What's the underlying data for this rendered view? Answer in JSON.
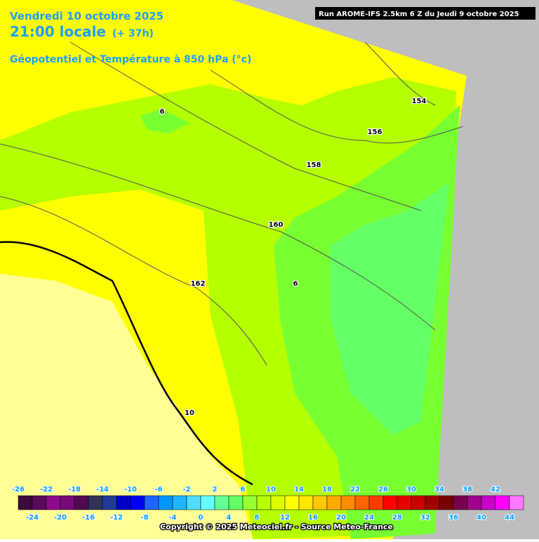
{
  "header": {
    "date": "Vendredi 10 octobre 2025",
    "time": "21:00 locale",
    "lead": "(+ 37h)",
    "field": "Géopotentiel et Température à 850 hPa (°c)",
    "run": "Run AROME-IFS 2.5km 6 Z du Jeudi 9 octobre 2025"
  },
  "contour_labels": [
    "6",
    "154",
    "156",
    "158",
    "160",
    "162",
    "6",
    "10"
  ],
  "colorbar": {
    "top_labels": [
      -26,
      -22,
      -18,
      -14,
      -10,
      -6,
      -2,
      2,
      6,
      10,
      14,
      18,
      22,
      26,
      30,
      34,
      38,
      42
    ],
    "bottom_labels": [
      -24,
      -20,
      -16,
      -12,
      -8,
      -4,
      0,
      4,
      8,
      12,
      16,
      20,
      24,
      28,
      32,
      36,
      40,
      44
    ],
    "colors": [
      "#3c0a3c",
      "#5a0a5a",
      "#8c0a8c",
      "#780a78",
      "#500a50",
      "#32325a",
      "#1e3c96",
      "#0000c8",
      "#0000ff",
      "#1e64ff",
      "#0096ff",
      "#1eb4ff",
      "#50dcff",
      "#64ffff",
      "#64ff96",
      "#64ff64",
      "#96ff32",
      "#b4ff00",
      "#dcff00",
      "#ffff00",
      "#ffe600",
      "#ffc800",
      "#ffaa00",
      "#ff8c00",
      "#ff6400",
      "#ff3c00",
      "#ff0000",
      "#e60000",
      "#c80000",
      "#a00000",
      "#780000",
      "#780050",
      "#a0008c",
      "#c800c8",
      "#ff00ff",
      "#ff78ff"
    ]
  },
  "copyright": "Copyright © 2025 Meteociel.fr - Source Meteo-France"
}
